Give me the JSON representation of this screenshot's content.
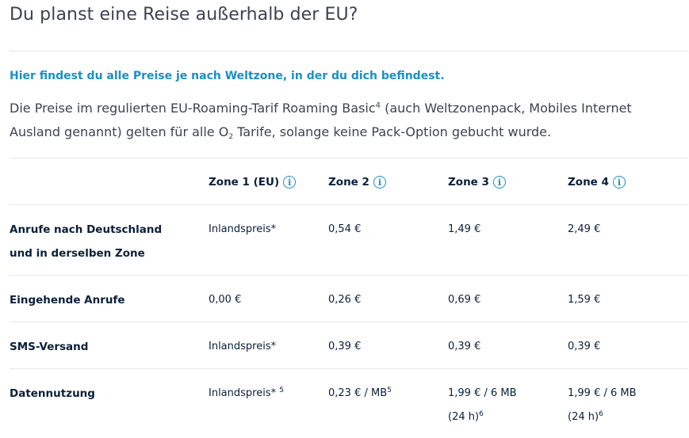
{
  "page": {
    "title": "Du planst eine Reise außerhalb der EU?",
    "intro_heading": "Hier findest du alle Preise je nach Weltzone, in der du dich befindest.",
    "intro_part1": "Die Preise im regulierten EU-Roaming-Tarif Roaming Basic",
    "intro_sup": "4",
    "intro_part2": " (auch Weltzonenpack, Mobiles Internet Ausland genannt) gelten für alle O",
    "intro_sub": "2",
    "intro_part3": " Tarife, solange keine Pack-Option gebucht wurde."
  },
  "table": {
    "zones": [
      {
        "label": "Zone 1 (EU)",
        "icon": "info-icon"
      },
      {
        "label": "Zone 2",
        "icon": "info-icon"
      },
      {
        "label": "Zone 3",
        "icon": "info-icon"
      },
      {
        "label": "Zone 4",
        "icon": "info-icon"
      }
    ],
    "info_glyph": "i",
    "rows": [
      {
        "label_line1": "Anrufe nach Deutschland",
        "label_line2": "und in derselben Zone",
        "cells": [
          {
            "value": "Inlandspreis*"
          },
          {
            "value": "0,54 €"
          },
          {
            "value": "1,49 €"
          },
          {
            "value": "2,49 €"
          }
        ]
      },
      {
        "label_line1": "Eingehende Anrufe",
        "cells": [
          {
            "value": "0,00 €"
          },
          {
            "value": "0,26 €"
          },
          {
            "value": "0,69 €"
          },
          {
            "value": "1,59 €"
          }
        ]
      },
      {
        "label_line1": "SMS-Versand",
        "cells": [
          {
            "value": "Inlandspreis*"
          },
          {
            "value": "0,39 €"
          },
          {
            "value": "0,39 €"
          },
          {
            "value": "0,39 €"
          }
        ]
      },
      {
        "label_line1": "Datennutzung",
        "cells": [
          {
            "value": "Inlandspreis* ",
            "sup": "5"
          },
          {
            "value": "0,23 € / MB",
            "sup": "5"
          },
          {
            "value": "1,99 € / 6 MB",
            "line2": "(24 h)",
            "sup2": "6"
          },
          {
            "value": "1,99 € / 6 MB",
            "line2": "(24 h)",
            "sup2": "6"
          }
        ]
      }
    ]
  }
}
